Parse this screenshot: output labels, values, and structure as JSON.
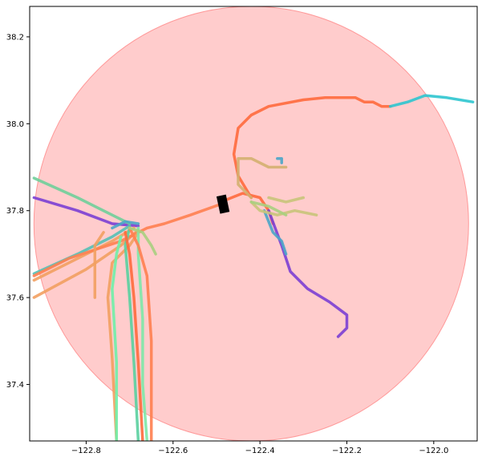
{
  "chart_data": {
    "type": "line",
    "title": "",
    "xlabel": "",
    "ylabel": "",
    "xlim": [
      -122.93,
      -121.9
    ],
    "ylim": [
      37.27,
      38.27
    ],
    "x_ticks": [
      {
        "value": -122.8,
        "label": "−122.8"
      },
      {
        "value": -122.6,
        "label": "−122.6"
      },
      {
        "value": -122.4,
        "label": "−122.4"
      },
      {
        "value": -122.2,
        "label": "−122.2"
      },
      {
        "value": -122.0,
        "label": "−122.0"
      }
    ],
    "y_ticks": [
      {
        "value": 37.4,
        "label": "37.4"
      },
      {
        "value": 37.6,
        "label": "37.6"
      },
      {
        "value": 37.8,
        "label": "37.8"
      },
      {
        "value": 38.0,
        "label": "38.0"
      },
      {
        "value": 38.2,
        "label": "38.2"
      }
    ],
    "grid": false,
    "legend": "none",
    "region_circle": {
      "center_x": -122.42,
      "center_y": 37.77,
      "radius_y": 0.5,
      "color": "#ff9999",
      "opacity": 0.5
    },
    "marker": {
      "type": "rectangle",
      "x": -122.485,
      "y": 37.815,
      "color": "#000000"
    },
    "series": [
      {
        "color": "#ff6a3d",
        "points": [
          [
            -122.49,
            37.82
          ],
          [
            -122.44,
            37.84
          ],
          [
            -122.4,
            37.83
          ],
          [
            -122.38,
            37.8
          ],
          [
            -122.37,
            37.77
          ]
        ]
      },
      {
        "color": "#ff6a3d",
        "points": [
          [
            -122.42,
            37.83
          ],
          [
            -122.45,
            37.88
          ],
          [
            -122.46,
            37.93
          ],
          [
            -122.45,
            37.99
          ],
          [
            -122.42,
            38.02
          ],
          [
            -122.38,
            38.04
          ],
          [
            -122.3,
            38.055
          ],
          [
            -122.25,
            38.06
          ],
          [
            -122.18,
            38.06
          ],
          [
            -122.16,
            38.05
          ],
          [
            -122.14,
            38.05
          ],
          [
            -122.12,
            38.04
          ],
          [
            -122.1,
            38.04
          ]
        ]
      },
      {
        "color": "#2ec5cf",
        "points": [
          [
            -122.1,
            38.04
          ],
          [
            -122.06,
            38.05
          ],
          [
            -122.02,
            38.065
          ],
          [
            -121.97,
            38.06
          ],
          [
            -121.91,
            38.05
          ]
        ]
      },
      {
        "color": "#7b3fd4",
        "points": [
          [
            -122.38,
            37.8
          ],
          [
            -122.35,
            37.72
          ],
          [
            -122.33,
            37.66
          ],
          [
            -122.29,
            37.62
          ],
          [
            -122.24,
            37.59
          ],
          [
            -122.2,
            37.56
          ],
          [
            -122.2,
            37.53
          ],
          [
            -122.22,
            37.51
          ]
        ]
      },
      {
        "color": "#7b3fd4",
        "points": [
          [
            -122.92,
            37.83
          ],
          [
            -122.82,
            37.8
          ],
          [
            -122.74,
            37.77
          ],
          [
            -122.68,
            37.765
          ]
        ]
      },
      {
        "color": "#4aa5c8",
        "points": [
          [
            -122.39,
            37.8
          ],
          [
            -122.37,
            37.75
          ],
          [
            -122.35,
            37.73
          ],
          [
            -122.34,
            37.7
          ]
        ]
      },
      {
        "color": "#4aa5c8",
        "points": [
          [
            -122.36,
            37.92
          ],
          [
            -122.35,
            37.92
          ],
          [
            -122.35,
            37.91
          ]
        ]
      },
      {
        "color": "#d4b070",
        "points": [
          [
            -122.42,
            37.83
          ],
          [
            -122.45,
            37.86
          ],
          [
            -122.45,
            37.92
          ],
          [
            -122.42,
            37.92
          ],
          [
            -122.38,
            37.9
          ],
          [
            -122.34,
            37.9
          ]
        ]
      },
      {
        "color": "#c9c47a",
        "points": [
          [
            -122.42,
            37.82
          ],
          [
            -122.4,
            37.8
          ],
          [
            -122.36,
            37.79
          ],
          [
            -122.32,
            37.8
          ],
          [
            -122.27,
            37.79
          ]
        ]
      },
      {
        "color": "#c9c47a",
        "points": [
          [
            -122.38,
            37.83
          ],
          [
            -122.34,
            37.82
          ],
          [
            -122.3,
            37.83
          ]
        ]
      },
      {
        "color": "#a8cf80",
        "points": [
          [
            -122.42,
            37.82
          ],
          [
            -122.38,
            37.81
          ],
          [
            -122.34,
            37.79
          ]
        ]
      },
      {
        "color": "#6fcf9a",
        "points": [
          [
            -122.92,
            37.875
          ],
          [
            -122.82,
            37.83
          ],
          [
            -122.74,
            37.79
          ],
          [
            -122.7,
            37.77
          ]
        ]
      },
      {
        "color": "#55c0b5",
        "points": [
          [
            -122.92,
            37.655
          ],
          [
            -122.82,
            37.7
          ],
          [
            -122.74,
            37.74
          ],
          [
            -122.7,
            37.765
          ]
        ]
      },
      {
        "color": "#f2a060",
        "points": [
          [
            -122.92,
            37.64
          ],
          [
            -122.82,
            37.69
          ],
          [
            -122.74,
            37.73
          ],
          [
            -122.69,
            37.76
          ]
        ]
      },
      {
        "color": "#f2a060",
        "points": [
          [
            -122.92,
            37.6
          ],
          [
            -122.8,
            37.665
          ],
          [
            -122.72,
            37.72
          ],
          [
            -122.68,
            37.755
          ]
        ]
      },
      {
        "color": "#ff7f50",
        "points": [
          [
            -122.92,
            37.65
          ],
          [
            -122.84,
            37.69
          ],
          [
            -122.78,
            37.71
          ],
          [
            -122.72,
            37.73
          ],
          [
            -122.66,
            37.76
          ],
          [
            -122.62,
            37.77
          ],
          [
            -122.56,
            37.79
          ],
          [
            -122.49,
            37.815
          ]
        ]
      },
      {
        "color": "#f2a060",
        "points": [
          [
            -122.68,
            37.75
          ],
          [
            -122.7,
            37.72
          ],
          [
            -122.74,
            37.68
          ],
          [
            -122.75,
            37.6
          ],
          [
            -122.74,
            37.46
          ],
          [
            -122.73,
            37.27
          ]
        ]
      },
      {
        "color": "#6ff0a8",
        "points": [
          [
            -122.72,
            37.74
          ],
          [
            -122.73,
            37.7
          ],
          [
            -122.74,
            37.62
          ],
          [
            -122.73,
            37.45
          ],
          [
            -122.73,
            37.27
          ]
        ]
      },
      {
        "color": "#5ad0a0",
        "points": [
          [
            -122.7,
            37.76
          ],
          [
            -122.71,
            37.72
          ],
          [
            -122.7,
            37.6
          ],
          [
            -122.69,
            37.45
          ],
          [
            -122.68,
            37.27
          ]
        ]
      },
      {
        "color": "#7ee8a8",
        "points": [
          [
            -122.68,
            37.76
          ],
          [
            -122.68,
            37.7
          ],
          [
            -122.67,
            37.55
          ],
          [
            -122.67,
            37.4
          ],
          [
            -122.66,
            37.27
          ]
        ]
      },
      {
        "color": "#ff6a3d",
        "points": [
          [
            -122.71,
            37.75
          ],
          [
            -122.7,
            37.7
          ],
          [
            -122.69,
            37.6
          ],
          [
            -122.68,
            37.45
          ],
          [
            -122.67,
            37.27
          ]
        ]
      },
      {
        "color": "#ff7f50",
        "points": [
          [
            -122.7,
            37.76
          ],
          [
            -122.68,
            37.72
          ],
          [
            -122.66,
            37.65
          ],
          [
            -122.65,
            37.5
          ],
          [
            -122.65,
            37.27
          ]
        ]
      },
      {
        "color": "#a8cf80",
        "points": [
          [
            -122.7,
            37.76
          ],
          [
            -122.67,
            37.75
          ],
          [
            -122.65,
            37.72
          ],
          [
            -122.64,
            37.7
          ]
        ]
      },
      {
        "color": "#4aa5c8",
        "points": [
          [
            -122.74,
            37.76
          ],
          [
            -122.71,
            37.775
          ],
          [
            -122.68,
            37.77
          ]
        ]
      },
      {
        "color": "#f2a060",
        "points": [
          [
            -122.76,
            37.75
          ],
          [
            -122.78,
            37.72
          ],
          [
            -122.78,
            37.6
          ]
        ]
      }
    ]
  }
}
